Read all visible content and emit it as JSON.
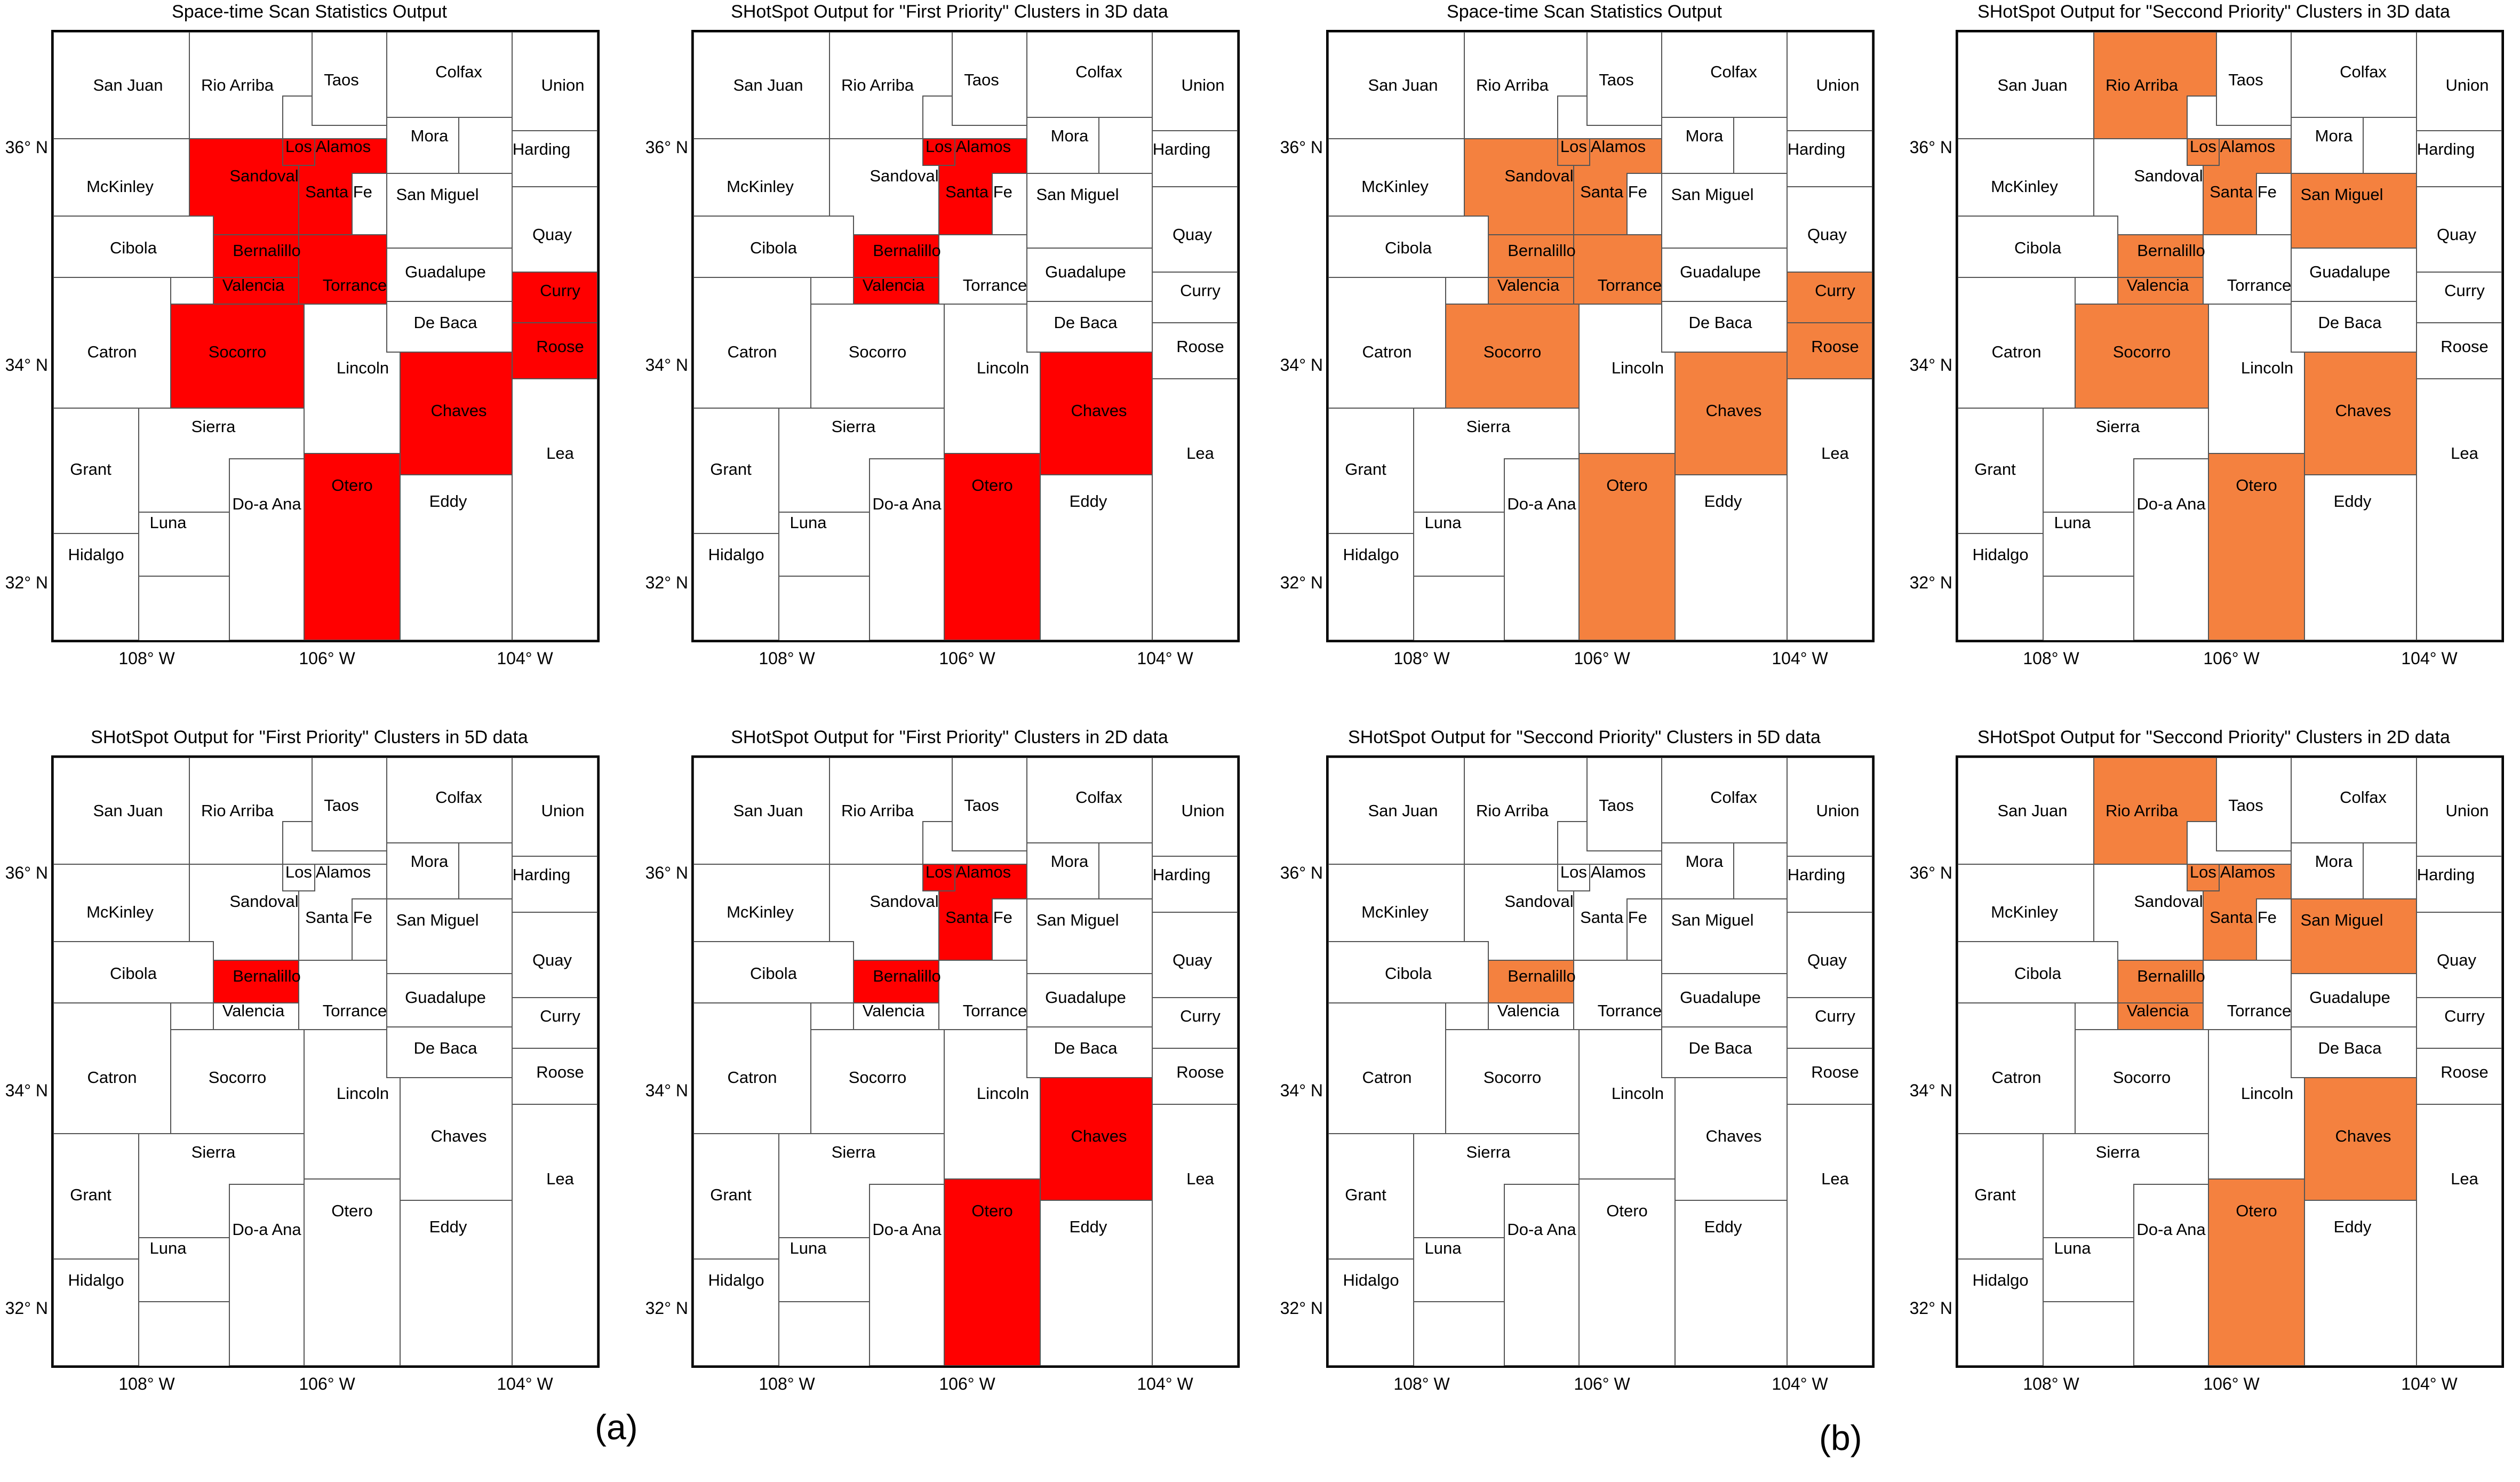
{
  "colors": {
    "first_priority": "#ff0000",
    "second_priority": "#f4813f",
    "unselected": "#ffffff",
    "county_border": "#555555"
  },
  "axes": {
    "lat_labels": [
      "36° N",
      "34° N",
      "32° N"
    ],
    "lon_labels": [
      "108° W",
      "106° W",
      "104° W"
    ]
  },
  "group_labels": [
    "(a)",
    "(b)"
  ],
  "counties": [
    "San Juan",
    "Rio Arriba",
    "Taos",
    "Colfax",
    "Union",
    "Los Alamos",
    "Mora",
    "Harding",
    "McKinley",
    "Sandoval",
    "Santa Fe",
    "San Miguel",
    "Quay",
    "Cibola",
    "Bernalillo",
    "Guadalupe",
    "Curry",
    "Valencia",
    "Torrance",
    "De Baca",
    "Roose",
    "Catron",
    "Socorro",
    "Lincoln",
    "Chaves",
    "Sierra",
    "Lea",
    "Grant",
    "Otero",
    "Eddy",
    "Luna",
    "Do-a Ana",
    "Hidalgo"
  ],
  "panels": [
    {
      "title": "Space-time Scan Statistics Output",
      "fill": "first_priority",
      "highlighted": [
        "Sandoval",
        "Los Alamos",
        "Santa Fe",
        "Bernalillo",
        "Valencia",
        "Torrance",
        "Socorro",
        "Curry",
        "Roose",
        "Chaves",
        "Otero"
      ]
    },
    {
      "title": "SHotSpot Output for \"First Priority\" Clusters in 3D data",
      "fill": "first_priority",
      "highlighted": [
        "Los Alamos",
        "Santa Fe",
        "Bernalillo",
        "Valencia",
        "Chaves",
        "Otero"
      ]
    },
    {
      "title": "Space-time Scan Statistics Output",
      "fill": "second_priority",
      "highlighted": [
        "Sandoval",
        "Los Alamos",
        "Santa Fe",
        "Bernalillo",
        "Valencia",
        "Torrance",
        "Socorro",
        "Curry",
        "Roose",
        "Chaves",
        "Otero"
      ]
    },
    {
      "title": "SHotSpot Output for \"Seccond Priority\" Clusters in 3D data",
      "fill": "second_priority",
      "highlighted": [
        "Rio Arriba",
        "Los Alamos",
        "Santa Fe",
        "San Miguel",
        "Bernalillo",
        "Valencia",
        "Socorro",
        "Chaves",
        "Otero"
      ]
    },
    {
      "title": "SHotSpot Output for \"First Priority\" Clusters in 5D data",
      "fill": "first_priority",
      "highlighted": [
        "Bernalillo"
      ]
    },
    {
      "title": "SHotSpot Output for \"First Priority\" Clusters in 2D data",
      "fill": "first_priority",
      "highlighted": [
        "Los Alamos",
        "Santa Fe",
        "Bernalillo",
        "Chaves",
        "Otero"
      ]
    },
    {
      "title": "SHotSpot Output for \"Seccond Priority\" Clusters in 5D data",
      "fill": "second_priority",
      "highlighted": [
        "Bernalillo"
      ]
    },
    {
      "title": "SHotSpot Output for \"Seccond Priority\" Clusters in 2D data",
      "fill": "second_priority",
      "highlighted": [
        "Rio Arriba",
        "Los Alamos",
        "Santa Fe",
        "San Miguel",
        "Bernalillo",
        "Valencia",
        "Chaves",
        "Otero"
      ]
    }
  ]
}
